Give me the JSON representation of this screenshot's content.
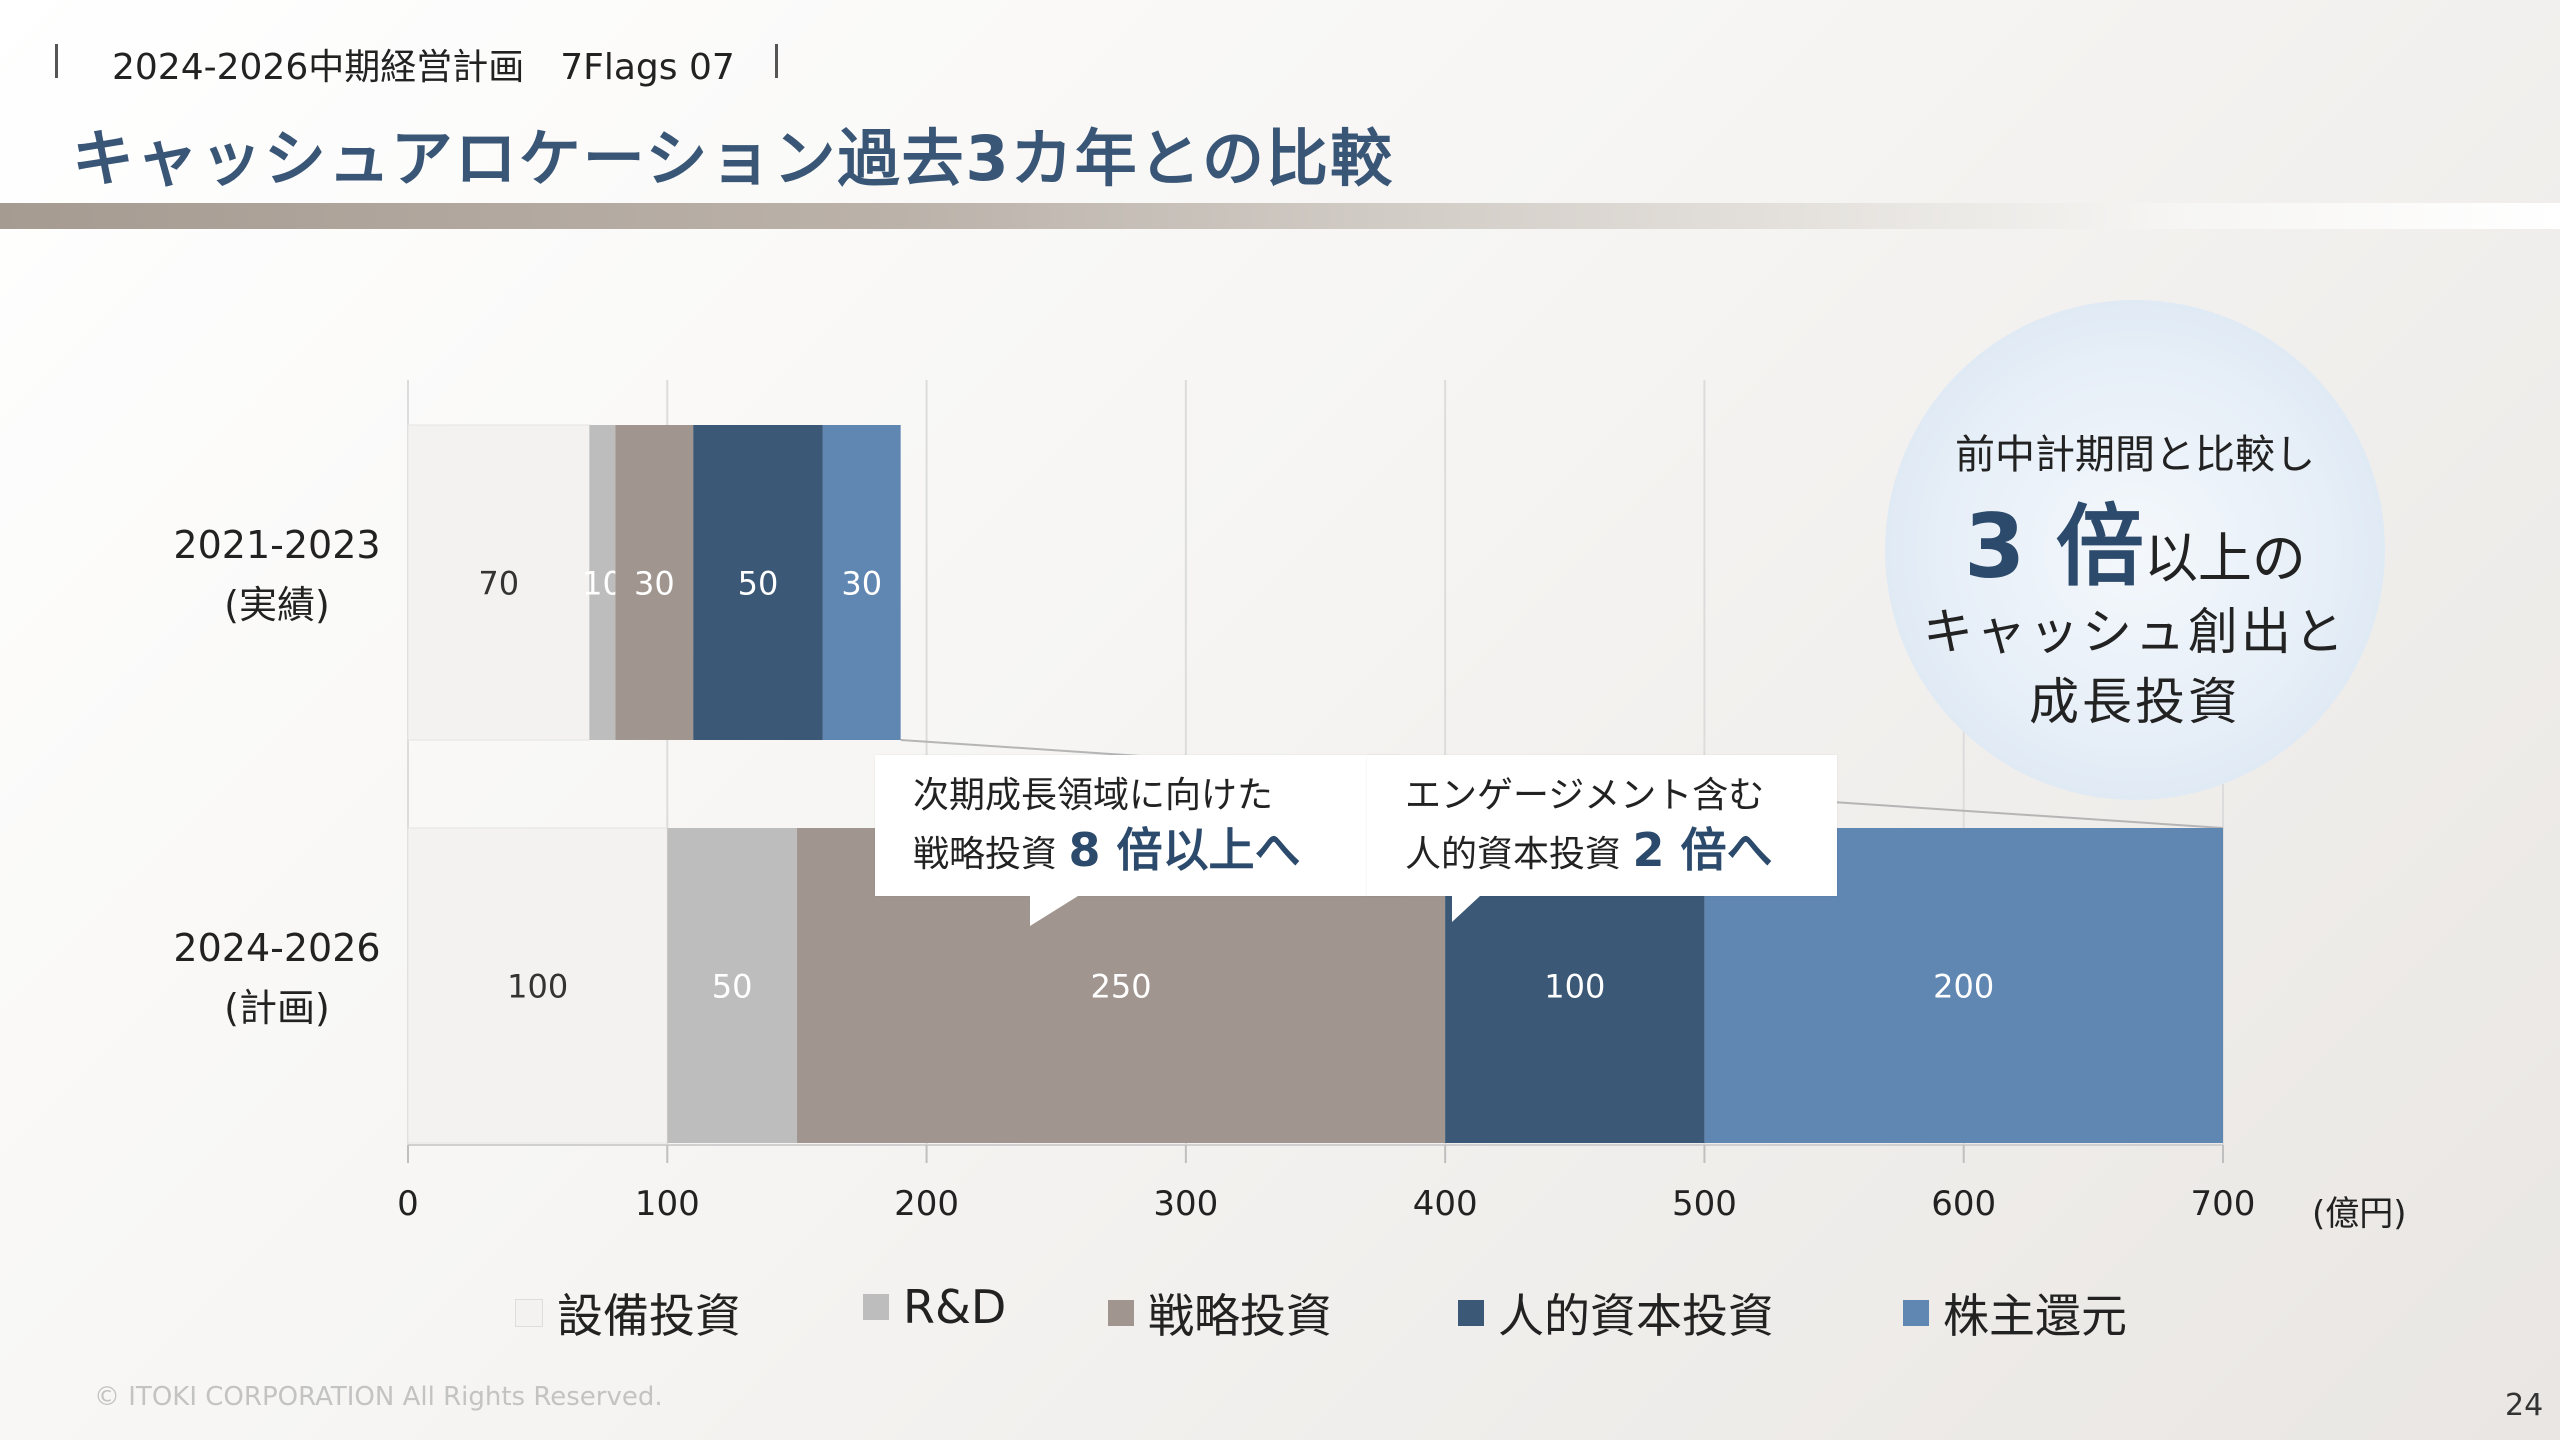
{
  "header": {
    "doc_title": "2024-2026中期経営計画　7Flags 07",
    "page_title": "キャッシュアロケーション過去3カ年との比較"
  },
  "chart_data": {
    "type": "bar",
    "orientation": "horizontal",
    "stacked": true,
    "categories": [
      "2021-2023\n(実績)",
      "2024-2026\n(計画)"
    ],
    "category_lines": [
      [
        "2021-2023",
        "(実績)"
      ],
      [
        "2024-2026",
        "(計画)"
      ]
    ],
    "series": [
      {
        "name": "設備投資",
        "color": "#f3f2f1",
        "label_color": "#333333",
        "values": [
          70,
          100
        ]
      },
      {
        "name": "R&D",
        "color": "#bdbdbd",
        "label_color": "#ffffff",
        "values": [
          10,
          50
        ]
      },
      {
        "name": "戦略投資",
        "color": "#a0958f",
        "label_color": "#ffffff",
        "values": [
          30,
          250
        ]
      },
      {
        "name": "人的資本投資",
        "color": "#3b5877",
        "label_color": "#ffffff",
        "values": [
          50,
          100
        ]
      },
      {
        "name": "株主還元",
        "color": "#6086b2",
        "label_color": "#ffffff",
        "values": [
          30,
          200
        ]
      }
    ],
    "xlim": [
      0,
      700
    ],
    "xticks": [
      0,
      100,
      200,
      300,
      400,
      500,
      600,
      700
    ],
    "unit": "(億円)",
    "grid": true,
    "legend": "bottom"
  },
  "callouts": {
    "strategic": {
      "line1": "次期成長領域に向けた",
      "line2_prefix": "戦略投資",
      "line2_emph": "8 倍以上へ"
    },
    "human": {
      "line1": "エンゲージメント含む",
      "line2_prefix": "人的資本投資",
      "line2_emph": "2 倍へ"
    }
  },
  "bubble": {
    "line1": "前中計期間と比較し",
    "big": "3 倍",
    "line2_suffix": "以上の",
    "line3": "キャッシュ創出と",
    "line4": "成長投資"
  },
  "footer": {
    "copyright": "© ITOKI CORPORATION All Rights Reserved.",
    "page_number": "24"
  }
}
